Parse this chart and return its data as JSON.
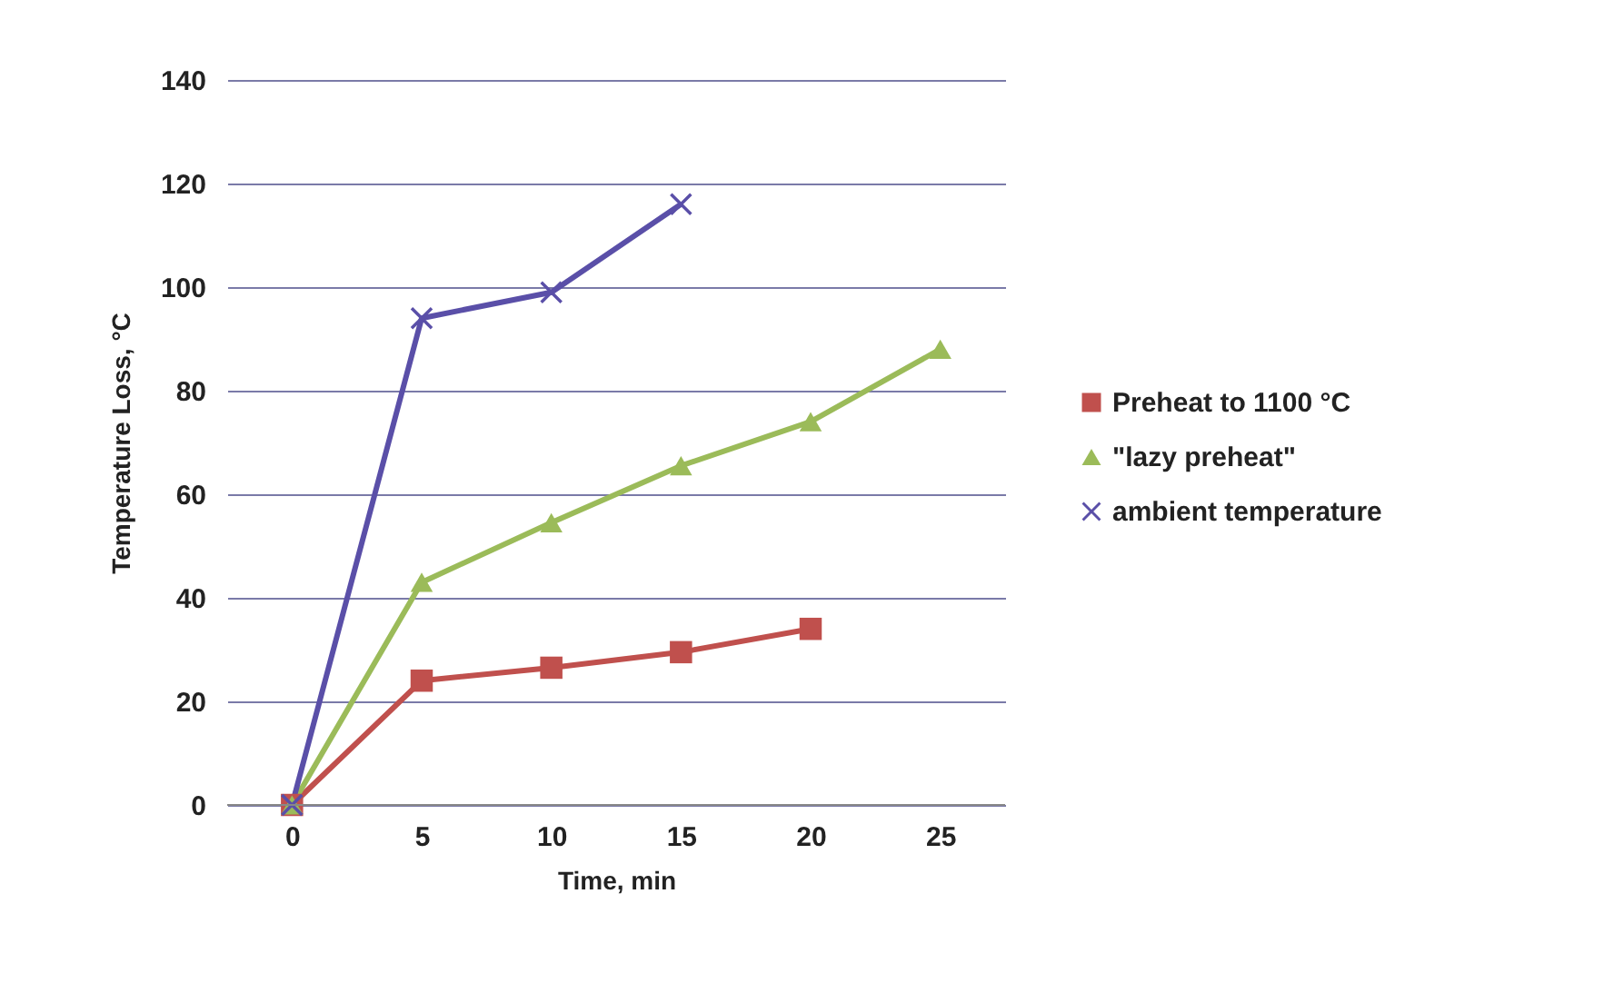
{
  "chart_data": {
    "type": "line",
    "xlabel": "Time, min",
    "ylabel": "Temperature Loss, °C",
    "categories": [
      "0",
      "5",
      "10",
      "15",
      "20",
      "25"
    ],
    "ylim": [
      0,
      140
    ],
    "yticks": [
      0,
      20,
      40,
      60,
      80,
      100,
      120,
      140
    ],
    "grid": "y",
    "legend": "right",
    "series": [
      {
        "name": "Preheat to 1100 °C",
        "color": "#c0504d",
        "marker": "square",
        "values": [
          0,
          24,
          26.5,
          29.5,
          34,
          null
        ]
      },
      {
        "name": "\"lazy preheat\"",
        "color": "#9bbb59",
        "marker": "triangle",
        "values": [
          0,
          43,
          54.5,
          65.5,
          74,
          88
        ]
      },
      {
        "name": "ambient temperature",
        "color": "#5a4fa8",
        "marker": "cross",
        "values": [
          0,
          94,
          99,
          116,
          null,
          null
        ]
      }
    ]
  }
}
